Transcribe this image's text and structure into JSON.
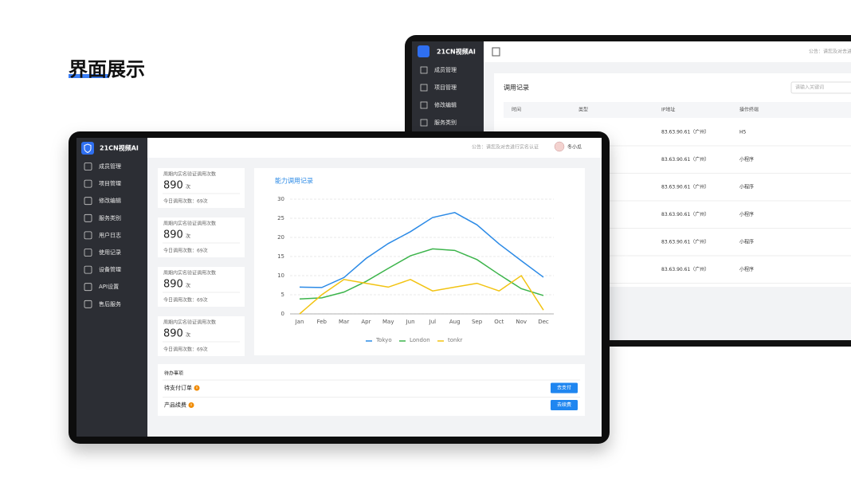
{
  "heading": "界面展示",
  "back_screen": {
    "brand": "21CN视频AI",
    "menu": [
      "成员管理",
      "项目管理",
      "修改编辑",
      "服务类别"
    ],
    "notice": "公告：请您及对去进",
    "title": "调用记录",
    "search_placeholder": "请输入关键词",
    "table": {
      "headers": [
        "时间",
        "类型",
        "IP地址",
        "操作终端"
      ],
      "rows": [
        {
          "ip": "83.63.90.61（广州）",
          "terminal": "H5"
        },
        {
          "ip": "83.63.90.61（广州）",
          "terminal": "小程序"
        },
        {
          "ip": "83.63.90.61（广州）",
          "terminal": "小程序"
        },
        {
          "ip": "83.63.90.61（广州）",
          "terminal": "小程序"
        },
        {
          "ip": "83.63.90.61（广州）",
          "terminal": "小程序"
        },
        {
          "ip": "83.63.90.61（广州）",
          "terminal": "小程序"
        }
      ]
    }
  },
  "front_screen": {
    "brand": "21CN视频AI",
    "menu": [
      "成员管理",
      "项目管理",
      "修改编辑",
      "服务类别",
      "用户日志",
      "使用记录",
      "设备管理",
      "API设置",
      "售后服务"
    ],
    "notice": "公告：请您及对去进行实名认证",
    "user": "冬小瓜",
    "stats": [
      {
        "label": "周期内实名验证调用次数",
        "value": 890,
        "unit": "次",
        "today": "今日调用次数：69次"
      },
      {
        "label": "周期内实名验证调用次数",
        "value": 890,
        "unit": "次",
        "today": "今日调用次数：69次"
      },
      {
        "label": "周期内实名验证调用次数",
        "value": 890,
        "unit": "次",
        "today": "今日调用次数：69次"
      },
      {
        "label": "周期内实名验证调用次数",
        "value": 890,
        "unit": "次",
        "today": "今日调用次数：69次"
      }
    ],
    "todo": {
      "title": "待办事项",
      "items": [
        {
          "label": "待支付订单",
          "action": "去支付"
        },
        {
          "label": "产品续费",
          "action": "去续费"
        }
      ]
    }
  },
  "chart_data": {
    "type": "line",
    "title": "能力调用记录",
    "categories": [
      "Jan",
      "Feb",
      "Mar",
      "Apr",
      "May",
      "Jun",
      "Jul",
      "Aug",
      "Sep",
      "Oct",
      "Nov",
      "Dec"
    ],
    "series": [
      {
        "name": "Tokyo",
        "color": "#2b8ae6",
        "values": [
          7.0,
          6.9,
          9.5,
          14.5,
          18.4,
          21.5,
          25.2,
          26.5,
          23.3,
          18.3,
          13.9,
          9.6
        ]
      },
      {
        "name": "London",
        "color": "#3cb44b",
        "values": [
          3.9,
          4.2,
          5.7,
          8.5,
          11.9,
          15.2,
          17.0,
          16.6,
          14.2,
          10.3,
          6.6,
          4.8
        ]
      },
      {
        "name": "tonkr",
        "color": "#f2c311",
        "values": [
          0,
          5,
          9,
          8,
          7,
          9,
          6,
          7,
          8,
          6,
          10,
          1
        ]
      }
    ],
    "ylim": [
      0,
      30
    ],
    "yticks": [
      0,
      5,
      10,
      15,
      20,
      25,
      30
    ],
    "grid": true
  }
}
